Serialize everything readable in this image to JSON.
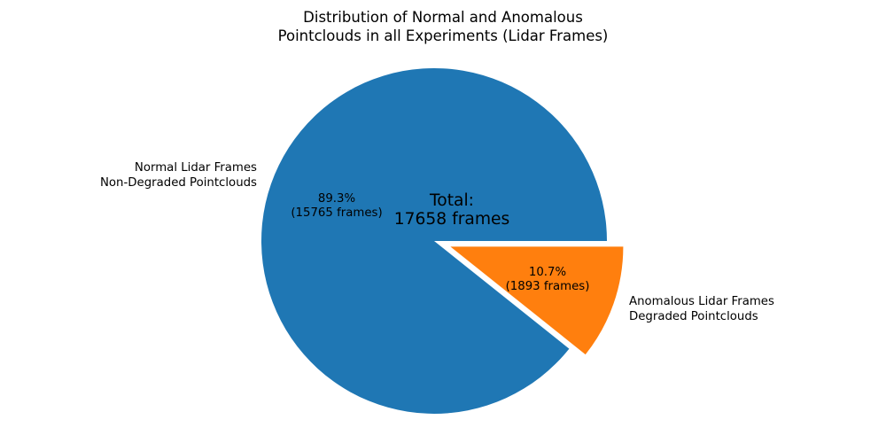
{
  "chart_data": {
    "type": "pie",
    "title": "Distribution of Normal and Anomalous\nPointclouds in all Experiments (Lidar Frames)",
    "categories": [
      "Normal Lidar Frames Non-Degraded Pointclouds",
      "Anomalous Lidar Frames Degraded Pointclouds"
    ],
    "values": [
      15765,
      1893
    ],
    "percentages": [
      89.3,
      10.7
    ],
    "total": 17658,
    "colors": [
      "#1f77b4",
      "#ff7f0e"
    ],
    "explode": [
      0,
      0.1
    ],
    "start_angle_deg": 0,
    "direction": "counterclockwise",
    "legend_position": "none",
    "slice_labels": [
      "Normal Lidar Frames\nNon-Degraded Pointclouds",
      "Anomalous Lidar Frames\nDegraded Pointclouds"
    ],
    "autopct_labels": [
      "89.3%\n(15765 frames)",
      "10.7%\n(1893 frames)"
    ],
    "center_annotation": "Total:\n17658 frames"
  }
}
